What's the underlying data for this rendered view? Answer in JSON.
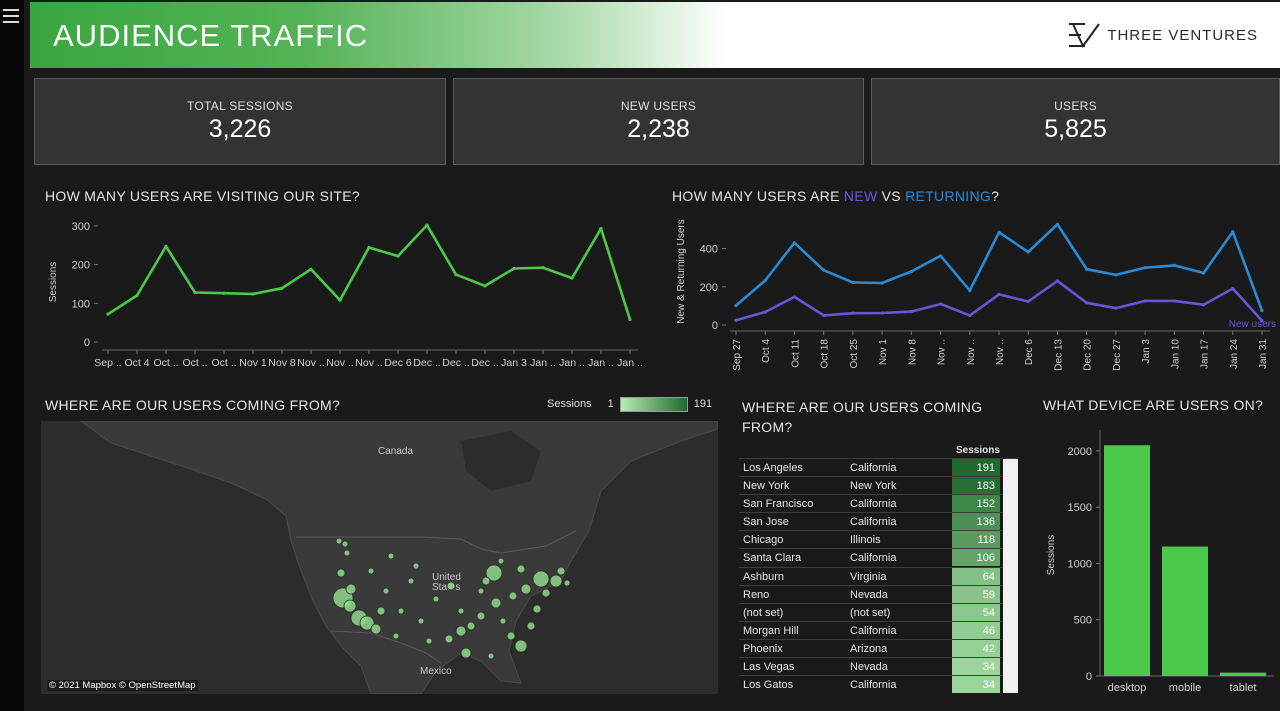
{
  "header": {
    "title": "AUDIENCE TRAFFIC",
    "brand": "THREE VENTURES"
  },
  "kpis": [
    {
      "label": "TOTAL SESSIONS",
      "value": "3,226"
    },
    {
      "label": "NEW USERS",
      "value": "2,238"
    },
    {
      "label": "USERS",
      "value": "5,825"
    }
  ],
  "titles": {
    "visits": "HOW MANY USERS ARE VISITING OUR SITE?",
    "new_vs_ret_a": "HOW MANY USERS ARE ",
    "new_word": "NEW",
    "vs_word": " VS ",
    "ret_word": "RETURNING",
    "qmark": "?",
    "geo": "WHERE ARE OUR USERS COMING FROM?",
    "geo_table": "WHERE ARE OUR USERS COMING FROM?",
    "device": "WHAT DEVICE ARE USERS ON?"
  },
  "map": {
    "labels": [
      "Canada",
      "United States",
      "Mexico"
    ],
    "attribution": "© 2021 Mapbox © OpenStreetMap",
    "legend_title": "Sessions",
    "legend_min": "1",
    "legend_max": "191"
  },
  "table": {
    "header": "Sessions",
    "rows": [
      {
        "city": "Los Angeles",
        "state": "California",
        "sessions": 191
      },
      {
        "city": "New York",
        "state": "New York",
        "sessions": 183
      },
      {
        "city": "San Francisco",
        "state": "California",
        "sessions": 152
      },
      {
        "city": "San Jose",
        "state": "California",
        "sessions": 136
      },
      {
        "city": "Chicago",
        "state": "Illinois",
        "sessions": 118
      },
      {
        "city": "Santa Clara",
        "state": "California",
        "sessions": 106
      },
      {
        "city": "Ashburn",
        "state": "Virginia",
        "sessions": 64
      },
      {
        "city": "Reno",
        "state": "Nevada",
        "sessions": 59
      },
      {
        "city": "(not set)",
        "state": "(not set)",
        "sessions": 54
      },
      {
        "city": "Morgan Hill",
        "state": "California",
        "sessions": 46
      },
      {
        "city": "Phoenix",
        "state": "Arizona",
        "sessions": 42
      },
      {
        "city": "Las Vegas",
        "state": "Nevada",
        "sessions": 34
      },
      {
        "city": "Los Gatos",
        "state": "California",
        "sessions": 34
      }
    ]
  },
  "colors": {
    "accent_green": "#4cc94a",
    "new_purple": "#6a55d6",
    "returning_blue": "#2a8ad6",
    "background": "#1a1a1a"
  },
  "chart_data": [
    {
      "type": "line",
      "title": "HOW MANY USERS ARE VISITING OUR SITE?",
      "ylabel": "Sessions",
      "ylim": [
        0,
        310
      ],
      "yticks": [
        0,
        100,
        200,
        300
      ],
      "x_tick_labels": [
        "Sep ..",
        "Oct 4",
        "Oct ..",
        "Oct ..",
        "Oct ..",
        "Nov 1",
        "Nov 8",
        "Nov ..",
        "Nov ..",
        "Nov ..",
        "Dec 6",
        "Dec ..",
        "Dec ..",
        "Dec ..",
        "Jan 3",
        "Jan ..",
        "Jan ..",
        "Jan ..",
        "Jan .."
      ],
      "series": [
        {
          "values": [
            72,
            120,
            247,
            128,
            126,
            124,
            139,
            188,
            108,
            244,
            222,
            302,
            174,
            145,
            190,
            192,
            165,
            293,
            58
          ]
        }
      ],
      "grid": false
    },
    {
      "type": "line",
      "title": "HOW MANY USERS ARE NEW VS RETURNING?",
      "ylabel": "New & Returning Users",
      "ylim": [
        0,
        560
      ],
      "yticks": [
        0,
        200,
        400
      ],
      "x_tick_labels": [
        "Sep 27",
        "Oct 4",
        "Oct 11",
        "Oct 18",
        "Oct 25",
        "Nov 1",
        "Nov 8",
        "Nov ..",
        "Nov ..",
        "Nov ..",
        "Dec 6",
        "Dec 13",
        "Dec 20",
        "Dec 27",
        "Jan 3",
        "Jan 10",
        "Jan 17",
        "Jan 24",
        "Jan 31"
      ],
      "series": [
        {
          "name": "Returning",
          "values": [
            102,
            233,
            430,
            287,
            223,
            220,
            280,
            362,
            180,
            485,
            382,
            527,
            292,
            262,
            300,
            312,
            272,
            488,
            75
          ]
        },
        {
          "name": "New users",
          "values": [
            25,
            68,
            147,
            50,
            62,
            63,
            70,
            110,
            50,
            160,
            123,
            231,
            116,
            88,
            126,
            126,
            106,
            191,
            22
          ]
        }
      ],
      "legend_label": "New users",
      "grid": false
    },
    {
      "type": "bar",
      "title": "WHAT DEVICE ARE USERS ON?",
      "ylabel": "Sessions",
      "categories": [
        "desktop",
        "mobile",
        "tablet"
      ],
      "values": [
        2050,
        1150,
        30
      ],
      "ylim": [
        0,
        2150
      ],
      "yticks": [
        0,
        500,
        1000,
        1500,
        2000
      ]
    }
  ]
}
